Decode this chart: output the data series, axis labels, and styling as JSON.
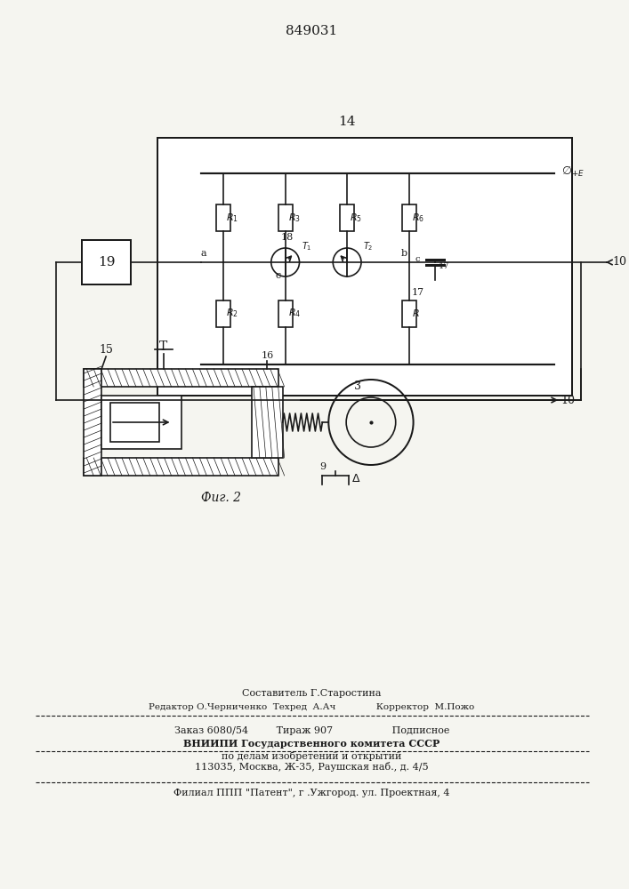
{
  "title": "849031",
  "bg_color": "#f5f5f0",
  "line_color": "#1a1a1a",
  "fig_caption": "Фиг. 2",
  "footer_lines": [
    "Составитель Г.Старостина",
    "Редактор О.Черниченко  Техред  А.Ач              Корректор  М.Пожо",
    "Заказ 6080/54         Тираж 907                   Подписное",
    "ВНИИПИ Государственного комитета СССР",
    "по делам изобретений и открытий",
    "113035, Москва, Ж-35, Раушская наб., д. 4/5",
    "Филиал ППП \"Патент\", г .Ужгород. ул. Проектная, 4"
  ]
}
